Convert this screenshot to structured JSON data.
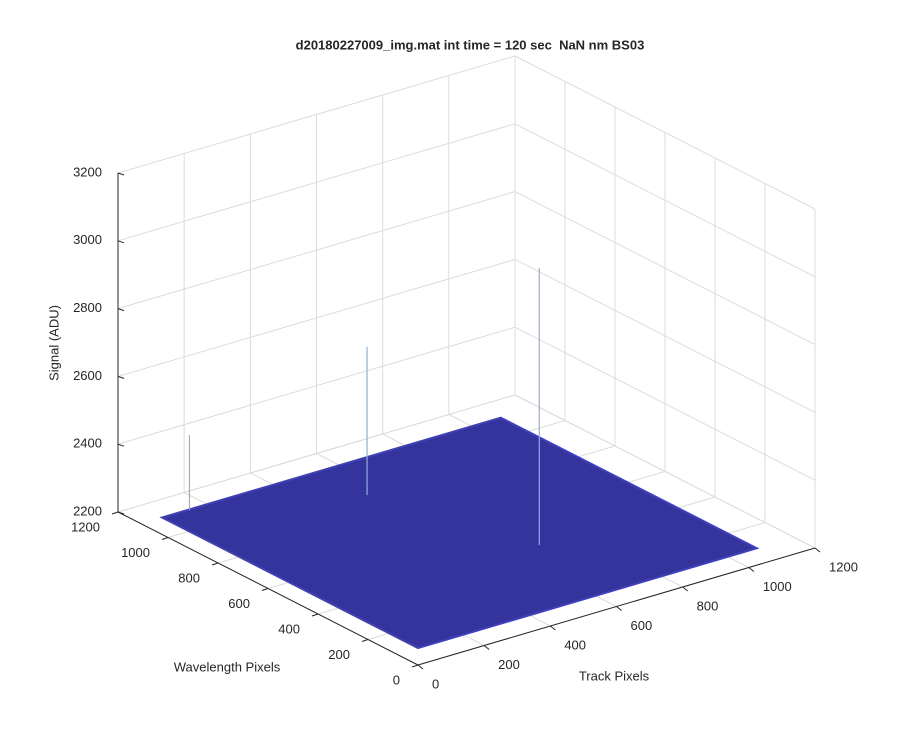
{
  "chart_data": {
    "type": "surface3d",
    "title": "d20180227009_img.mat int time = 120 sec  NaN nm BS03",
    "xlabel": "Track Pixels",
    "ylabel": "Wavelength Pixels",
    "zlabel": "Signal (ADU)",
    "xlim": [
      0,
      1200
    ],
    "xticks": [
      0,
      200,
      400,
      600,
      800,
      1000,
      1200
    ],
    "ylim": [
      0,
      1200
    ],
    "yticks": [
      0,
      200,
      400,
      600,
      800,
      1000,
      1200
    ],
    "zlim": [
      2200,
      3200
    ],
    "zticks": [
      2200,
      2400,
      2600,
      2800,
      3000,
      3200
    ],
    "grid": true,
    "surface": {
      "x": [
        0,
        1024
      ],
      "y": [
        0,
        1024
      ],
      "z": [
        [
          2250,
          2250
        ],
        [
          2250,
          2250
        ]
      ],
      "color": "#34349c"
    },
    "spikes": {
      "x": [
        80,
        477,
        619
      ],
      "y": [
        1020,
        835,
        334
      ],
      "z": [
        2471,
        2687,
        3067
      ],
      "color": "#8fb0d8"
    }
  }
}
